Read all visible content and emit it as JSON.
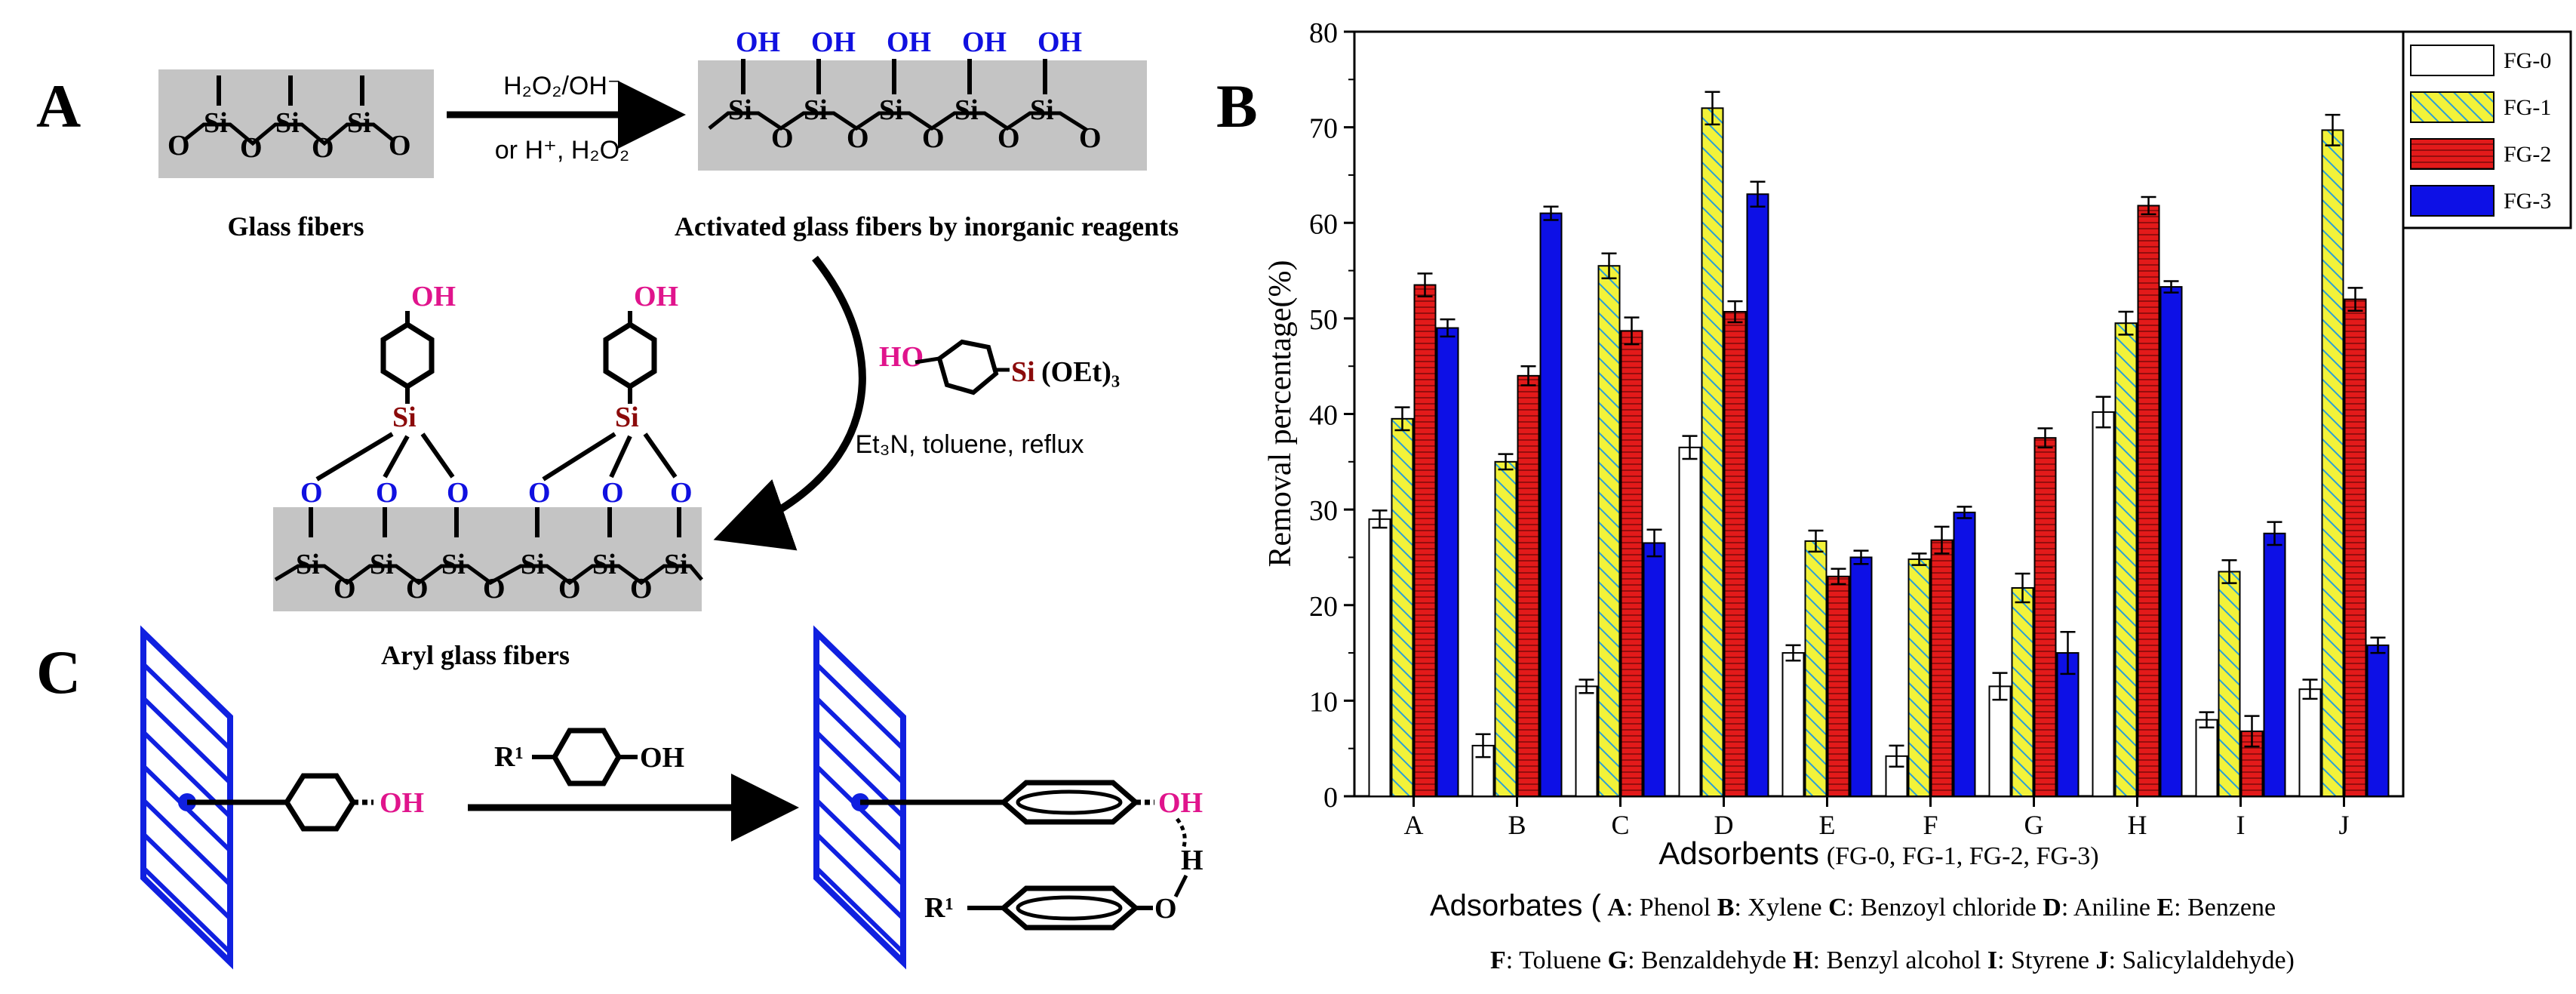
{
  "panel_labels": {
    "a": "A",
    "b": "B",
    "c": "C"
  },
  "scheme_a": {
    "glass_label": "Glass fibers",
    "activated_label": "Activated glass fibers by inorganic reagents",
    "aryl_label": "Aryl glass fibers",
    "reagent_top": "H₂O₂/OH⁻",
    "reagent_bottom": "or H⁺, H₂O₂",
    "conditions": "Et₃N, toluene, reflux",
    "silane_ho": "HO",
    "silane_si": "Si",
    "silane_oet": "(OEt)₃",
    "si": "Si",
    "o": "O",
    "oh": "OH"
  },
  "scheme_c": {
    "oh": "OH",
    "h": "H",
    "o": "O",
    "r1": "R¹"
  },
  "colors": {
    "fg0": "#ffffff",
    "fg1_base": "#f2f23a",
    "fg1_hatch": "#2a9fd6",
    "fg2_base": "#e31a1a",
    "fg2_line": "#7a0a0a",
    "fg3": "#0d10e6",
    "blue_o": "#1010e0",
    "magenta": "#e0148c",
    "darkred": "#8b0a0a",
    "gray_box": "#c4c4c4",
    "scheme_blue": "#1020e0"
  },
  "chart_data": {
    "type": "bar",
    "categories": [
      "A",
      "B",
      "C",
      "D",
      "E",
      "F",
      "G",
      "H",
      "I",
      "J"
    ],
    "series": [
      {
        "name": "FG-0",
        "values": [
          29.0,
          5.3,
          11.5,
          36.5,
          15.0,
          4.2,
          11.5,
          40.2,
          8.0,
          11.2
        ],
        "errors": [
          0.9,
          1.2,
          0.7,
          1.2,
          0.8,
          1.1,
          1.4,
          1.6,
          0.8,
          1.0
        ]
      },
      {
        "name": "FG-1",
        "values": [
          39.5,
          35.0,
          55.5,
          72.0,
          26.7,
          24.8,
          21.8,
          49.5,
          23.5,
          69.7
        ],
        "errors": [
          1.2,
          0.8,
          1.3,
          1.7,
          1.1,
          0.6,
          1.5,
          1.2,
          1.2,
          1.6
        ]
      },
      {
        "name": "FG-2",
        "values": [
          53.5,
          44.0,
          48.7,
          50.7,
          23.0,
          26.8,
          37.5,
          61.8,
          6.8,
          52.0
        ],
        "errors": [
          1.2,
          1.0,
          1.4,
          1.1,
          0.8,
          1.4,
          1.0,
          0.9,
          1.6,
          1.2
        ]
      },
      {
        "name": "FG-3",
        "values": [
          49.0,
          61.0,
          26.5,
          63.0,
          25.0,
          29.7,
          15.0,
          53.3,
          27.5,
          15.8
        ],
        "errors": [
          0.9,
          0.7,
          1.4,
          1.3,
          0.7,
          0.6,
          2.2,
          0.6,
          1.2,
          0.8
        ]
      }
    ],
    "ylim": [
      0,
      80
    ],
    "yticks": [
      0,
      10,
      20,
      30,
      40,
      50,
      60,
      70,
      80
    ],
    "ylabel": "Removal percentage(%)",
    "xlabel_main": "Adsorbents",
    "xlabel_sub": "(FG-0, FG-1, FG-2, FG-3)",
    "legend_position": "top-right",
    "adsorbates_title": "Adsorbates (",
    "adsorbates": [
      {
        "key": "A",
        "name": ": Phenol"
      },
      {
        "key": "B",
        "name": ": Xylene"
      },
      {
        "key": "C",
        "name": ": Benzoyl chloride"
      },
      {
        "key": "D",
        "name": ": Aniline"
      },
      {
        "key": "E",
        "name": ": Benzene"
      },
      {
        "key": "F",
        "name": ": Toluene"
      },
      {
        "key": "G",
        "name": ": Benzaldehyde"
      },
      {
        "key": "H",
        "name": ": Benzyl alcohol"
      },
      {
        "key": "I",
        "name": ": Styrene"
      },
      {
        "key": "J",
        "name": ": Salicylaldehyde)"
      }
    ]
  }
}
